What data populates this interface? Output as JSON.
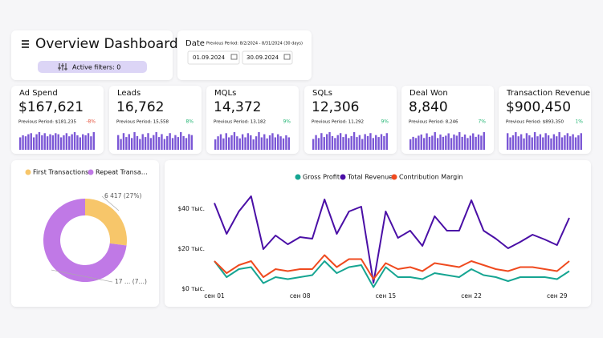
{
  "header": {
    "title": "Overview Dashboard",
    "filters": "Active filters: 0"
  },
  "date_filter": {
    "label": "Date",
    "previous_period": "Previous Period: 8/2/2024 - 8/31/2024 (30 days)",
    "start": "01.09.2024",
    "end": "30.09.2024"
  },
  "kpis": [
    {
      "title": "Ad Spend",
      "value": "$167,621",
      "previous": "Previous Period: $181,235",
      "delta": "-8%",
      "delta_color": "#e5533d",
      "bar_color": "#7b57d6",
      "sparkline": [
        12,
        14,
        13,
        15,
        16,
        12,
        15,
        17,
        14,
        16,
        13,
        15,
        14,
        16,
        15,
        12,
        14,
        16,
        13,
        15,
        17,
        14,
        12,
        15,
        14,
        16,
        13,
        17
      ]
    },
    {
      "title": "Leads",
      "value": "16,762",
      "previous": "Previous Period: 15,558",
      "delta": "8%",
      "delta_color": "#22b573",
      "bar_color": "#7b57d6",
      "sparkline": [
        15,
        11,
        17,
        13,
        16,
        12,
        18,
        14,
        11,
        16,
        13,
        17,
        12,
        15,
        18,
        13,
        16,
        11,
        14,
        17,
        12,
        15,
        13,
        18,
        14,
        12,
        16,
        15
      ]
    },
    {
      "title": "MQLs",
      "value": "14,372",
      "previous": "Previous Period: 13,182",
      "delta": "9%",
      "delta_color": "#22b573",
      "bar_color": "#7b57d6",
      "sparkline": [
        10,
        13,
        15,
        11,
        16,
        12,
        14,
        17,
        13,
        11,
        15,
        12,
        16,
        14,
        10,
        13,
        17,
        12,
        15,
        11,
        14,
        16,
        12,
        15,
        13,
        11,
        14,
        12
      ]
    },
    {
      "title": "SQLs",
      "value": "12,306",
      "previous": "Previous Period: 11,292",
      "delta": "9%",
      "delta_color": "#22b573",
      "bar_color": "#7b57d6",
      "sparkline": [
        11,
        15,
        12,
        17,
        13,
        16,
        18,
        14,
        12,
        15,
        17,
        13,
        16,
        12,
        14,
        18,
        13,
        15,
        11,
        16,
        14,
        17,
        12,
        15,
        13,
        16,
        14,
        17
      ]
    },
    {
      "title": "Deal Won",
      "value": "8,840",
      "previous": "Previous Period: 8,246",
      "delta": "7%",
      "delta_color": "#22b573",
      "bar_color": "#7b57d6",
      "sparkline": [
        9,
        11,
        10,
        12,
        13,
        10,
        14,
        11,
        12,
        15,
        10,
        13,
        11,
        12,
        14,
        10,
        13,
        12,
        15,
        11,
        13,
        10,
        12,
        14,
        11,
        13,
        12,
        15
      ]
    },
    {
      "title": "Transaction Revenue",
      "value": "$900,450",
      "previous": "Previous Period: $893,350",
      "delta": "1%",
      "delta_color": "#22b573",
      "bar_color": "#7b57d6",
      "sparkline": [
        16,
        12,
        14,
        17,
        13,
        15,
        11,
        16,
        14,
        12,
        17,
        13,
        15,
        12,
        16,
        14,
        11,
        15,
        13,
        17,
        12,
        14,
        16,
        13,
        15,
        12,
        14,
        16
      ]
    }
  ],
  "donut_chart": {
    "type": "pie",
    "categories": [
      "First Transactions",
      "Repeat Transa…"
    ],
    "values": [
      6417,
      17350
    ],
    "value_labels": [
      "6 417 (27%)",
      "17 … (7…)"
    ],
    "colors": [
      "#f7c66a",
      "#c079e6"
    ]
  },
  "line_chart": {
    "type": "line",
    "categories": [
      "сен 01",
      null,
      null,
      null,
      null,
      null,
      null,
      "сен 08",
      null,
      null,
      null,
      null,
      null,
      null,
      "сен 15",
      null,
      null,
      null,
      null,
      null,
      null,
      "сен 22",
      null,
      null,
      null,
      null,
      null,
      null,
      "сен 29",
      null
    ],
    "series": [
      {
        "name": "Gross Profit",
        "color": "#16a592",
        "values": [
          14000,
          6000,
          10000,
          11000,
          3000,
          6000,
          5000,
          6000,
          7000,
          14000,
          8000,
          11000,
          12000,
          1000,
          11000,
          6000,
          6000,
          5000,
          8000,
          7000,
          6000,
          10000,
          7000,
          6000,
          4000,
          6000,
          6000,
          6000,
          5000,
          9000
        ]
      },
      {
        "name": "Total Revenue",
        "color": "#4a0fa6",
        "values": [
          43000,
          27600,
          38800,
          46400,
          20000,
          26800,
          22400,
          26000,
          25200,
          44800,
          27600,
          38800,
          41200,
          3200,
          38800,
          25600,
          29200,
          21600,
          36400,
          29200,
          29200,
          44400,
          29200,
          25200,
          20400,
          23600,
          27200,
          24800,
          22000,
          35600
        ]
      },
      {
        "name": "Contribution Margin",
        "color": "#ef4a1f",
        "values": [
          14000,
          8000,
          12000,
          14000,
          6000,
          10000,
          9000,
          10000,
          10000,
          17000,
          11000,
          15000,
          15000,
          5000,
          13000,
          10000,
          11000,
          9000,
          13000,
          12000,
          11000,
          14000,
          12000,
          10000,
          9000,
          11000,
          11000,
          10000,
          9000,
          14000
        ]
      }
    ],
    "ylim": [
      0,
      40000
    ],
    "yticks": [
      {
        "value": 0,
        "label": "$0 тыс."
      },
      {
        "value": 20000,
        "label": "$20 тыс."
      },
      {
        "value": 40000,
        "label": "$40 тыс."
      }
    ],
    "grid": false
  }
}
